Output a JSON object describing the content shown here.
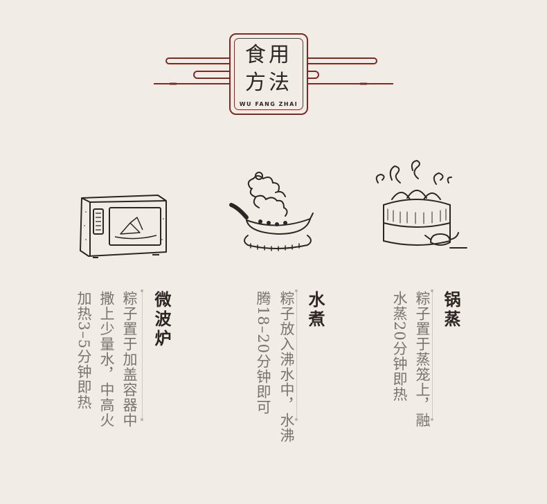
{
  "header": {
    "title_line1": "食用",
    "title_line2": "方法",
    "subtitle": "WU FANG ZHAI",
    "accent_color": "#7c2a24"
  },
  "methods": [
    {
      "icon": "microwave-icon",
      "title": "微波炉",
      "description_lines": [
        "粽子置于加盖容器中",
        "撒上少量水，中高火",
        "加热3–5分钟即热"
      ]
    },
    {
      "icon": "boiling-pot-icon",
      "title": "水煮",
      "description_lines": [
        "粽子放入沸水中，水沸",
        "腾18–20分钟即可"
      ]
    },
    {
      "icon": "steamer-icon",
      "title": "锅蒸",
      "description_lines": [
        "粽子置于蒸笼上，融",
        "水蒸20分钟即热"
      ]
    }
  ]
}
